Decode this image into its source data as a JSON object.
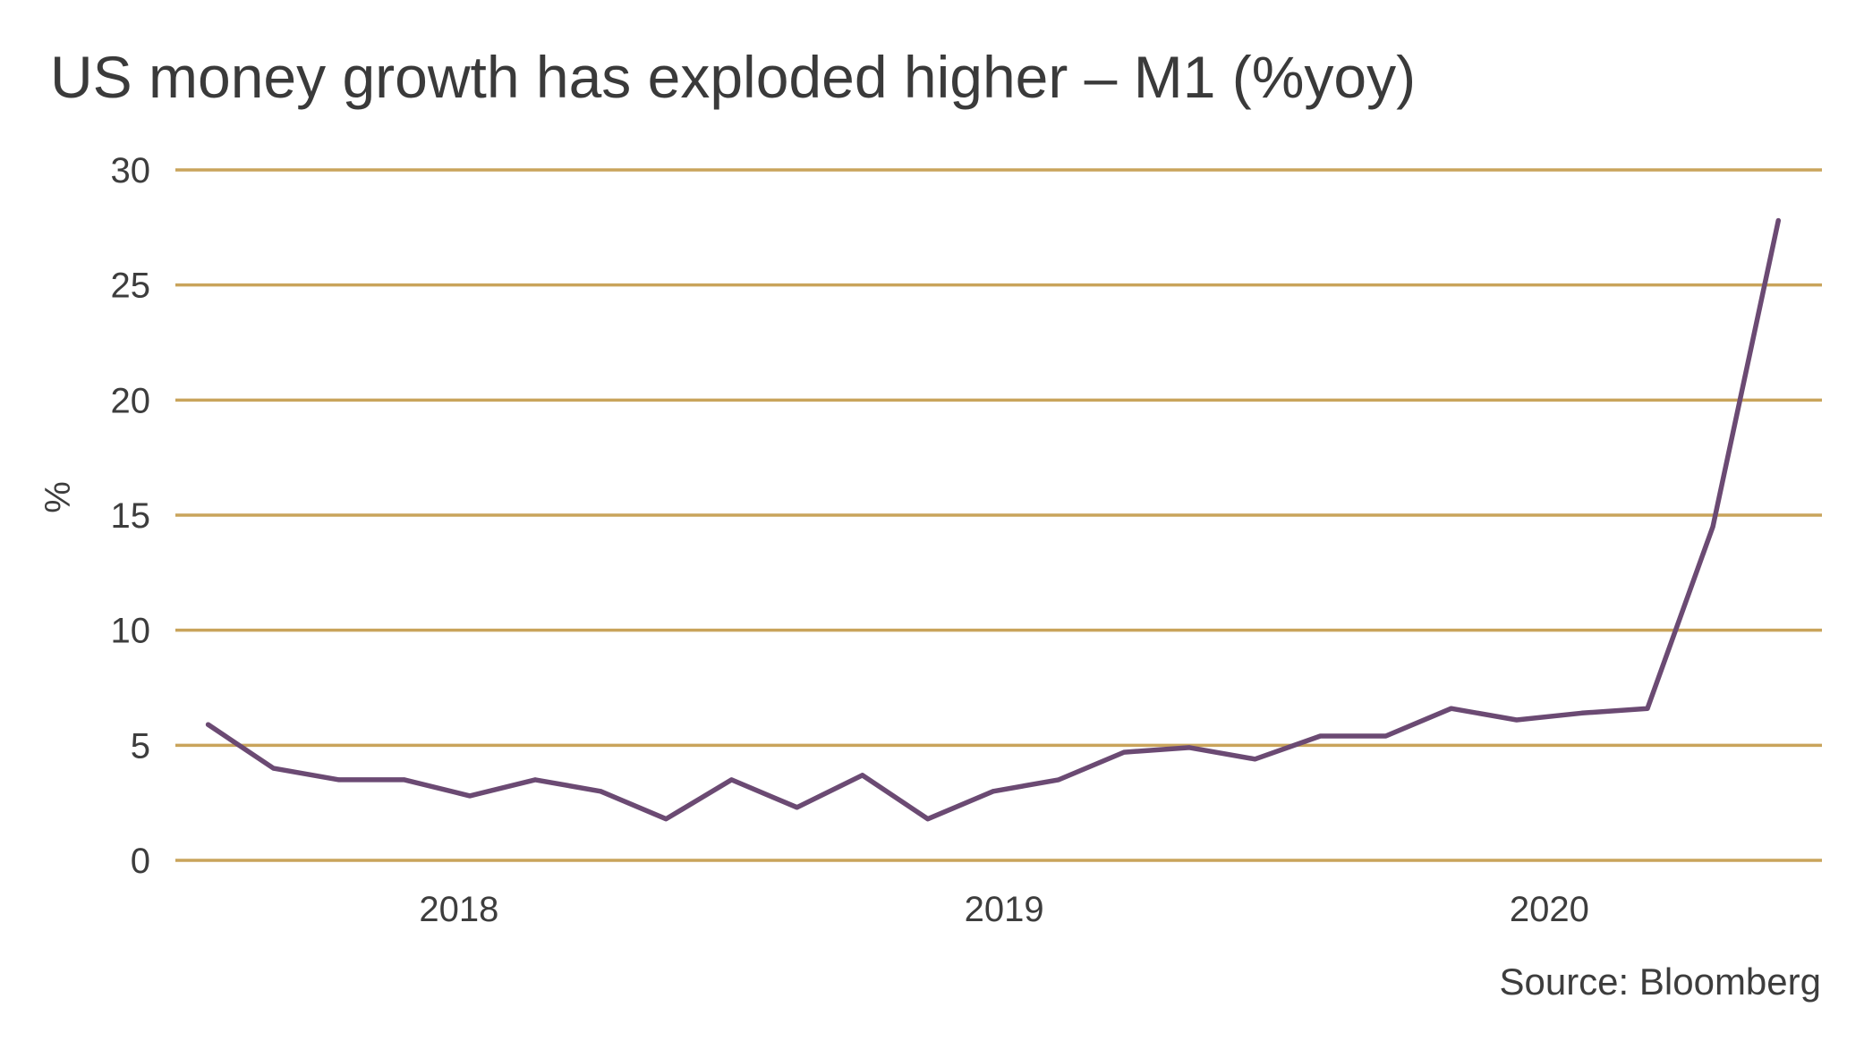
{
  "chart_data": {
    "type": "line",
    "title": "US money growth has exploded higher – M1 (%yoy)",
    "xlabel": "",
    "ylabel": "%",
    "source": "Source: Bloomberg",
    "ylim": [
      0,
      30
    ],
    "yticks": [
      "0",
      "5",
      "10",
      "15",
      "20",
      "25",
      "30"
    ],
    "xticks": [
      {
        "label": "2018",
        "t": 2018.0
      },
      {
        "label": "2019",
        "t": 2019.0
      },
      {
        "label": "2020",
        "t": 2020.0
      }
    ],
    "xlim": [
      2017.48,
      2020.5
    ],
    "grid": true,
    "legend": "none",
    "colors": {
      "line": "#6b4a73",
      "grid": "#c9a45b",
      "text": "#3d3d3d"
    },
    "series": [
      {
        "x": [
          2017.54,
          2017.66,
          2017.78,
          2017.9,
          2018.02,
          2018.14,
          2018.26,
          2018.38,
          2018.5,
          2018.62,
          2018.74,
          2018.86,
          2018.98,
          2019.1,
          2019.22,
          2019.34,
          2019.46,
          2019.58,
          2019.7,
          2019.82,
          2019.94,
          2020.06,
          2020.18,
          2020.3,
          2020.42
        ],
        "values": [
          5.9,
          4.0,
          3.5,
          3.5,
          2.8,
          3.5,
          3.0,
          1.8,
          3.5,
          2.3,
          3.7,
          1.8,
          3.0,
          3.5,
          4.7,
          4.9,
          4.4,
          5.4,
          5.4,
          6.6,
          6.1,
          6.4,
          6.6,
          14.5,
          27.8
        ]
      }
    ]
  }
}
